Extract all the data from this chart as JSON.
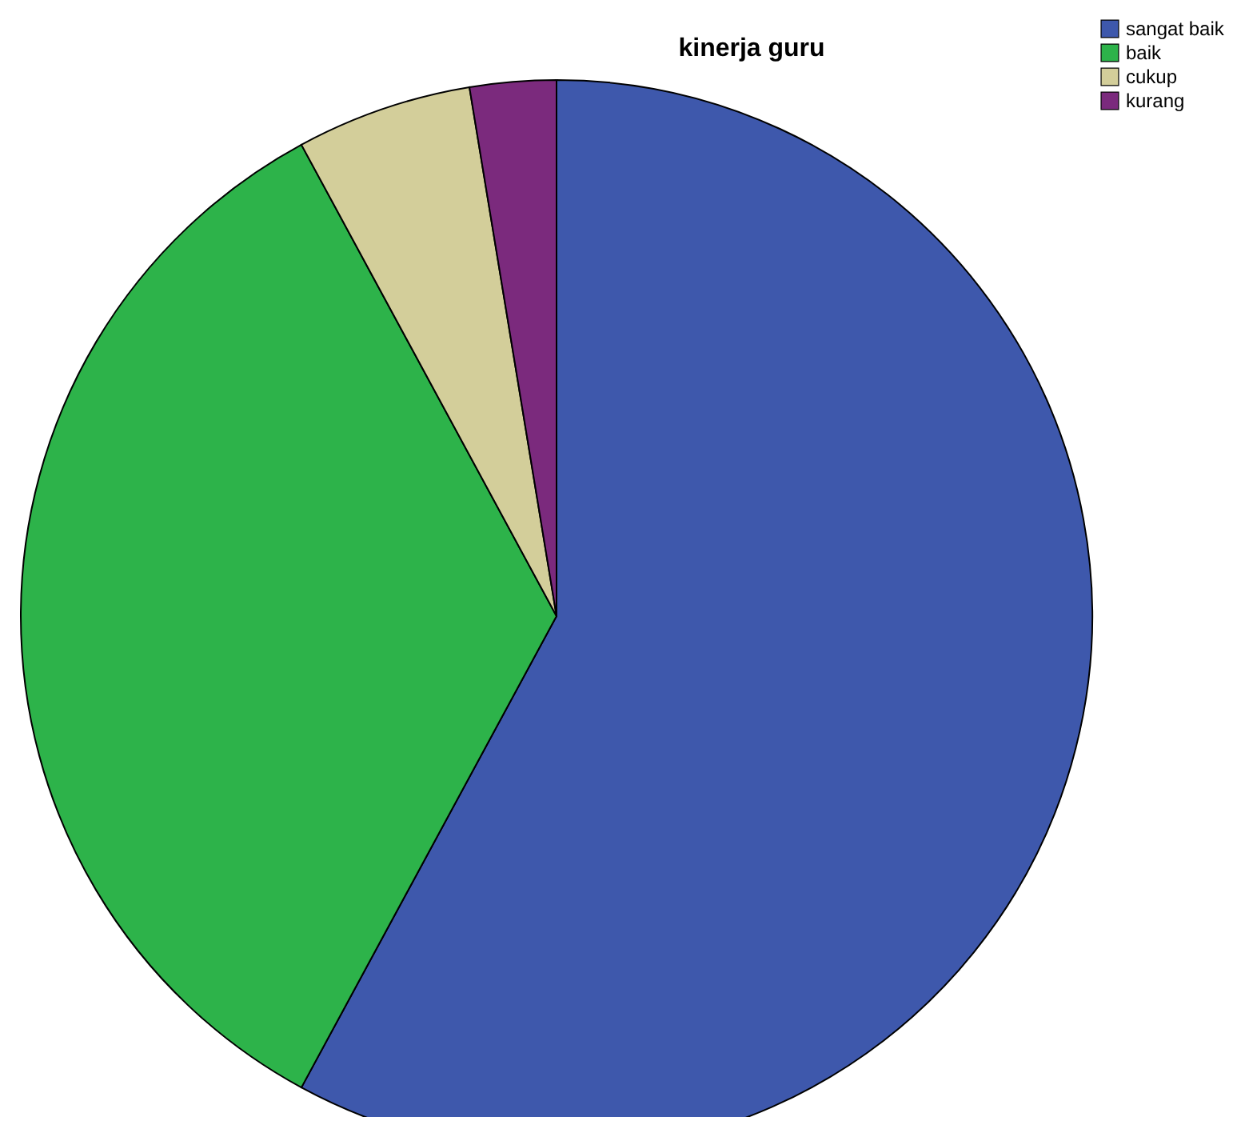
{
  "chart_data": {
    "type": "pie",
    "title": "kinerja guru",
    "categories": [
      "sangat baik",
      "baik",
      "cukup",
      "kurang"
    ],
    "values": [
      57.9,
      34.2,
      5.3,
      2.6
    ],
    "colors": [
      "#3e58ac",
      "#2db34a",
      "#d3ce9a",
      "#7b2a7d"
    ],
    "legend": "top right"
  }
}
